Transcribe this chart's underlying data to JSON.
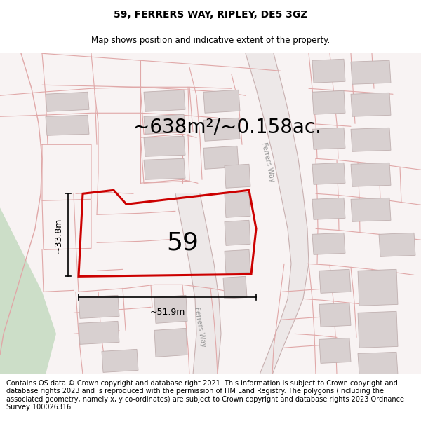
{
  "title": "59, FERRERS WAY, RIPLEY, DE5 3GZ",
  "subtitle": "Map shows position and indicative extent of the property.",
  "area_text": "~638m²/~0.158ac.",
  "width_label": "~51.9m",
  "height_label": "~33.8m",
  "property_number": "59",
  "footer": "Contains OS data © Crown copyright and database right 2021. This information is subject to Crown copyright and database rights 2023 and is reproduced with the permission of HM Land Registry. The polygons (including the associated geometry, namely x, y co-ordinates) are subject to Crown copyright and database rights 2023 Ordnance Survey 100026316.",
  "bg_color": "#ffffff",
  "map_bg": "#f5f0f0",
  "green_color": "#ccdec8",
  "road_fill": "#f0e8e8",
  "boundary_color": "#e0a8a8",
  "building_fill": "#d8d0d0",
  "building_edge": "#c0b0b0",
  "highlight_color": "#cc0000",
  "title_fontsize": 10,
  "subtitle_fontsize": 8.5,
  "area_fontsize": 20,
  "label_fontsize": 9,
  "number_fontsize": 26,
  "footer_fontsize": 7.0,
  "ferrers_way_fontsize": 7
}
